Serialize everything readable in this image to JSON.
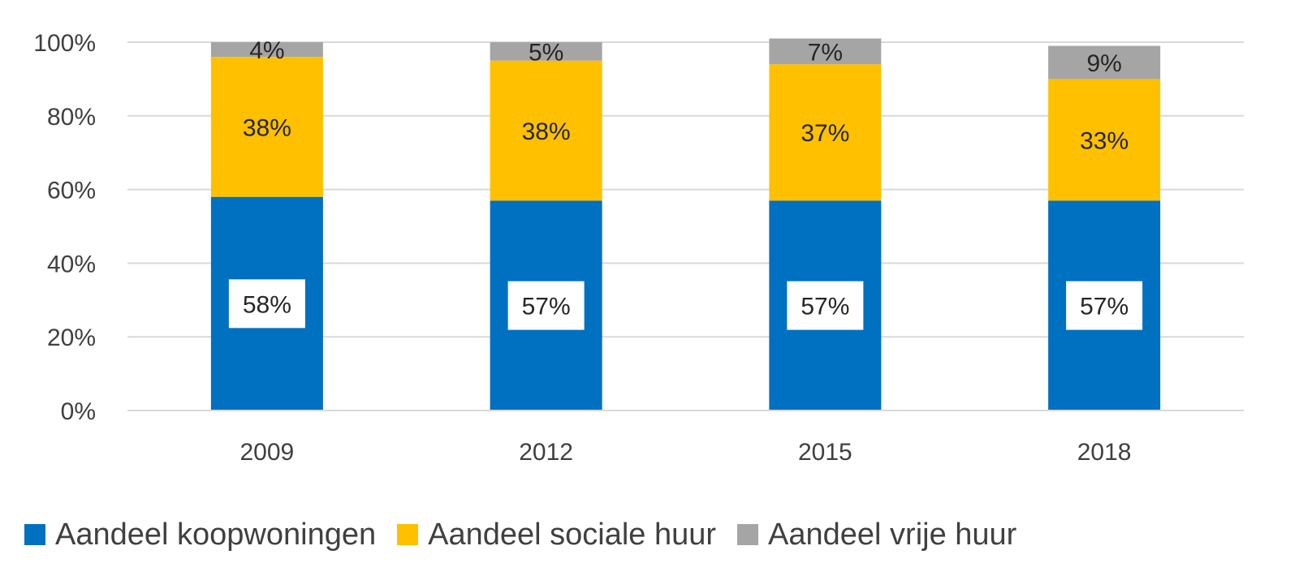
{
  "chart_data": {
    "type": "bar",
    "stacked": true,
    "percent_stacked": true,
    "categories": [
      "2009",
      "2012",
      "2015",
      "2018"
    ],
    "series": [
      {
        "name": "Aandeel koopwoningen",
        "values": [
          58,
          57,
          57,
          57
        ],
        "labels": [
          "58%",
          "57%",
          "57%",
          "57%"
        ],
        "color": "#0070C0"
      },
      {
        "name": "Aandeel sociale huur",
        "values": [
          38,
          38,
          37,
          33
        ],
        "labels": [
          "38%",
          "38%",
          "37%",
          "33%"
        ],
        "color": "#FFC000"
      },
      {
        "name": "Aandeel vrije huur",
        "values": [
          4,
          5,
          7,
          9
        ],
        "labels": [
          "4%",
          "5%",
          "7%",
          "9%"
        ],
        "color": "#A5A5A5"
      }
    ],
    "ylim": [
      0,
      100
    ],
    "yticks": [
      0,
      20,
      40,
      60,
      80,
      100
    ],
    "ytick_labels": [
      "0%",
      "20%",
      "40%",
      "60%",
      "80%",
      "100%"
    ],
    "grid": true,
    "legend_position": "bottom",
    "title": "",
    "xlabel": "",
    "ylabel": ""
  }
}
